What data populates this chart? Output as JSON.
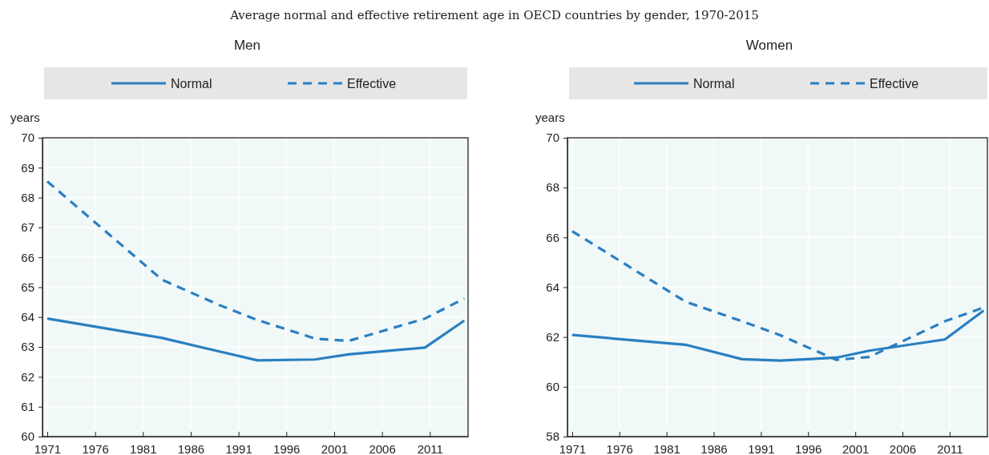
{
  "chart_data": [
    {
      "type": "line",
      "subtitle": "Average normal and effective retirement age in OECD countries by gender, 1970-2015",
      "title": "Men",
      "ylabel": "years",
      "xlim": [
        1970.5,
        2015
      ],
      "xticks": [
        1971,
        1976,
        1981,
        1986,
        1991,
        1996,
        2001,
        2006,
        2011
      ],
      "ylim": [
        60,
        70
      ],
      "yticks": [
        60,
        61,
        62,
        63,
        64,
        65,
        66,
        67,
        68,
        69,
        70
      ],
      "grid": true,
      "legend": "top",
      "series": [
        {
          "name": "Normal",
          "color": "#2a7fc1",
          "line_style": "solid",
          "x": [
            1971,
            1983,
            1989,
            1993,
            1999,
            2002.5,
            2010.5,
            2014.6
          ],
          "values": [
            63.95,
            63.3,
            62.85,
            62.55,
            62.58,
            62.75,
            62.98,
            63.88
          ]
        },
        {
          "name": "Effective",
          "color": "#2a7fc1",
          "line_style": "dashed",
          "x": [
            1971,
            1983,
            1989,
            1993,
            1999,
            2002.5,
            2010.5,
            2014.6
          ],
          "values": [
            68.54,
            65.25,
            64.4,
            63.9,
            63.28,
            63.2,
            63.95,
            64.62
          ]
        }
      ]
    },
    {
      "type": "line",
      "title": "Women",
      "ylabel": "years",
      "xlim": [
        1970.5,
        2015
      ],
      "xticks": [
        1971,
        1976,
        1981,
        1986,
        1991,
        1996,
        2001,
        2006,
        2011
      ],
      "ylim": [
        58,
        70
      ],
      "yticks": [
        58,
        60,
        62,
        64,
        66,
        68,
        70
      ],
      "grid": true,
      "legend": "top",
      "series": [
        {
          "name": "Normal",
          "color": "#2a7fc1",
          "line_style": "solid",
          "x": [
            1971,
            1983,
            1989,
            1993,
            1999,
            2002.5,
            2010.5,
            2014.6
          ],
          "values": [
            62.08,
            61.69,
            61.11,
            61.05,
            61.17,
            61.45,
            61.9,
            63.06
          ]
        },
        {
          "name": "Effective",
          "color": "#2a7fc1",
          "line_style": "dashed",
          "x": [
            1971,
            1983,
            1989,
            1993,
            1999,
            2002.5,
            2010.5,
            2014.6
          ],
          "values": [
            66.25,
            63.42,
            62.63,
            62.08,
            61.08,
            61.2,
            62.63,
            63.18
          ]
        }
      ]
    }
  ]
}
